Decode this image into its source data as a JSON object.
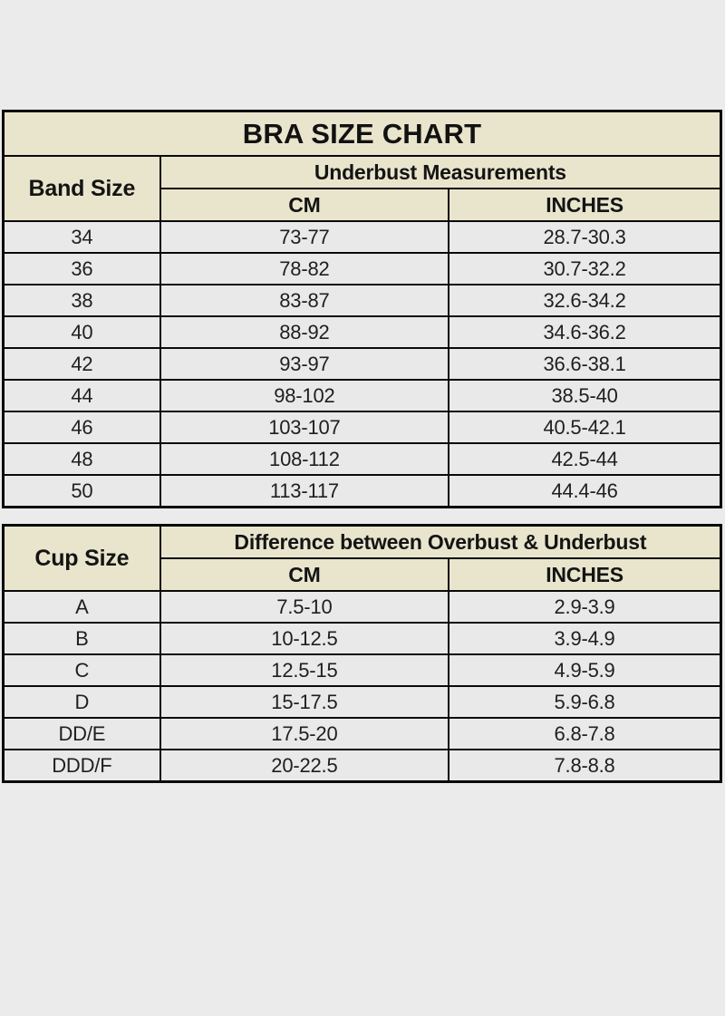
{
  "colors": {
    "page_bg": "#ebebeb",
    "header_bg": "#e9e5cd",
    "row_bg": "#e9e9e9",
    "border": "#0a0a0a",
    "text": "#1a1a1a"
  },
  "chart_data": [
    {
      "type": "table",
      "title": "BRA SIZE CHART",
      "corner_header": "Band Size",
      "group_header": "Underbust Measurements",
      "columns": [
        "CM",
        "INCHES"
      ],
      "rows": [
        [
          "34",
          "73-77",
          "28.7-30.3"
        ],
        [
          "36",
          "78-82",
          "30.7-32.2"
        ],
        [
          "38",
          "83-87",
          "32.6-34.2"
        ],
        [
          "40",
          "88-92",
          "34.6-36.2"
        ],
        [
          "42",
          "93-97",
          "36.6-38.1"
        ],
        [
          "44",
          "98-102",
          "38.5-40"
        ],
        [
          "46",
          "103-107",
          "40.5-42.1"
        ],
        [
          "48",
          "108-112",
          "42.5-44"
        ],
        [
          "50",
          "113-117",
          "44.4-46"
        ]
      ]
    },
    {
      "type": "table",
      "title": "",
      "corner_header": "Cup Size",
      "group_header": "Difference between Overbust & Underbust",
      "columns": [
        "CM",
        "INCHES"
      ],
      "rows": [
        [
          "A",
          "7.5-10",
          "2.9-3.9"
        ],
        [
          "B",
          "10-12.5",
          "3.9-4.9"
        ],
        [
          "C",
          "12.5-15",
          "4.9-5.9"
        ],
        [
          "D",
          "15-17.5",
          "5.9-6.8"
        ],
        [
          "DD/E",
          "17.5-20",
          "6.8-7.8"
        ],
        [
          "DDD/F",
          "20-22.5",
          "7.8-8.8"
        ]
      ]
    }
  ]
}
